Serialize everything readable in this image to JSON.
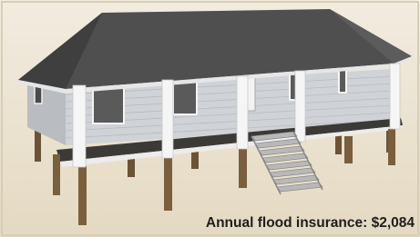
{
  "caption": "Annual flood insurance: $2,084"
}
